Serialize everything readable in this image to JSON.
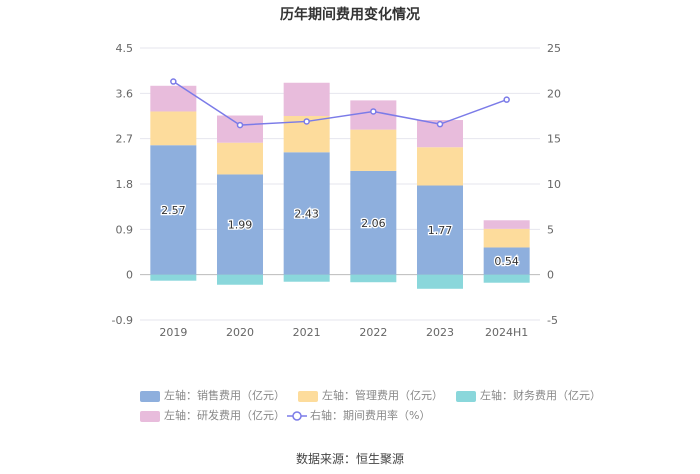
{
  "title": "历年期间费用变化情况",
  "source": "数据来源：恒生聚源",
  "chart_data": {
    "type": "bar",
    "stacked": true,
    "categories": [
      "2019",
      "2020",
      "2021",
      "2022",
      "2023",
      "2024H1"
    ],
    "left_axis": {
      "ticks": [
        "4.5",
        "3.6",
        "2.7",
        "1.8",
        "0.9",
        "0",
        "-0.9"
      ],
      "ylim": [
        -0.9,
        4.5
      ]
    },
    "right_axis": {
      "ticks": [
        "25",
        "20",
        "15",
        "10",
        "5",
        "0",
        "-5"
      ],
      "ylim": [
        -5,
        25
      ]
    },
    "series": [
      {
        "name": "左轴：销售费用（亿元）",
        "color": "#8eafdd",
        "axis": "left",
        "values": [
          2.57,
          1.99,
          2.43,
          2.06,
          1.77,
          0.54
        ],
        "data_labels": [
          "2.57",
          "1.99",
          "2.43",
          "2.06",
          "1.77",
          "0.54"
        ]
      },
      {
        "name": "左轴：管理费用（亿元）",
        "color": "#fddc9c",
        "axis": "left",
        "values": [
          0.67,
          0.63,
          0.72,
          0.82,
          0.76,
          0.37
        ]
      },
      {
        "name": "左轴：财务费用（亿元）",
        "color": "#8ad7db",
        "axis": "left",
        "values": [
          -0.12,
          -0.2,
          -0.14,
          -0.15,
          -0.28,
          -0.16
        ]
      },
      {
        "name": "左轴：研发费用（亿元）",
        "color": "#e8bcdc",
        "axis": "left",
        "values": [
          0.51,
          0.54,
          0.66,
          0.58,
          0.54,
          0.17
        ]
      },
      {
        "name": "右轴：期间费用率（%）",
        "color": "#7b7be8",
        "axis": "right",
        "type": "line",
        "values": [
          21.3,
          16.5,
          16.9,
          18.0,
          16.6,
          19.3
        ]
      }
    ],
    "grid": true,
    "legend_position": "bottom"
  }
}
